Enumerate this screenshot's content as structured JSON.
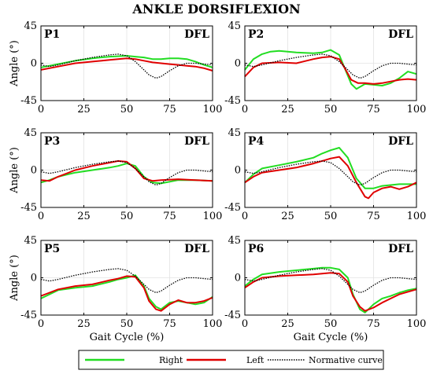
{
  "title": "ANKLE DORSIFLEXION",
  "legend": {
    "right": "Right",
    "left": "Left",
    "normative": "Normative curve"
  },
  "colors": {
    "right": "#22dd22",
    "left": "#e00000",
    "normative": "#000000"
  },
  "chart_data": [
    {
      "type": "line",
      "panel_label": "P1",
      "tag": "DFL",
      "xlabel": "",
      "ylabel": "Angle (°)",
      "xlim": [
        0,
        100
      ],
      "ylim": [
        -45,
        45
      ],
      "xticks": [
        "0",
        "25",
        "50",
        "75",
        "100"
      ],
      "yticks": [
        "45",
        "0",
        "-45"
      ],
      "series": [
        {
          "name": "Right",
          "x": [
            0,
            10,
            20,
            30,
            40,
            50,
            55,
            60,
            65,
            70,
            75,
            80,
            85,
            90,
            95,
            100
          ],
          "y": [
            -5,
            -1,
            3,
            6,
            8,
            9,
            8,
            7,
            5,
            5,
            6,
            6,
            5,
            2,
            -2,
            -5
          ]
        },
        {
          "name": "Left",
          "x": [
            0,
            10,
            20,
            30,
            40,
            50,
            55,
            60,
            65,
            70,
            75,
            80,
            85,
            90,
            95,
            100
          ],
          "y": [
            -8,
            -4,
            0,
            2,
            4,
            6,
            5,
            3,
            1,
            0,
            -1,
            -2,
            -3,
            -4,
            -6,
            -9
          ]
        },
        {
          "name": "Normative curve",
          "x": [
            0,
            5,
            10,
            20,
            30,
            40,
            45,
            50,
            55,
            60,
            63,
            67,
            70,
            75,
            80,
            85,
            90,
            95,
            100
          ],
          "y": [
            -2,
            -4,
            -2,
            3,
            7,
            10,
            11,
            9,
            2,
            -8,
            -14,
            -18,
            -16,
            -9,
            -3,
            0,
            0,
            -1,
            -2
          ]
        }
      ]
    },
    {
      "type": "line",
      "panel_label": "P2",
      "tag": "DFL",
      "xlabel": "",
      "ylabel": "",
      "xlim": [
        0,
        100
      ],
      "ylim": [
        -45,
        45
      ],
      "xticks": [
        "0",
        "25",
        "50",
        "75",
        "100"
      ],
      "yticks": [
        "45",
        "0",
        "-45"
      ],
      "series": [
        {
          "name": "Right",
          "x": [
            0,
            5,
            10,
            15,
            20,
            30,
            40,
            45,
            50,
            55,
            58,
            62,
            65,
            70,
            75,
            80,
            85,
            90,
            95,
            100
          ],
          "y": [
            -8,
            5,
            11,
            14,
            15,
            13,
            12,
            13,
            16,
            10,
            -5,
            -25,
            -31,
            -25,
            -26,
            -27,
            -24,
            -18,
            -10,
            -13
          ]
        },
        {
          "name": "Left",
          "x": [
            0,
            5,
            10,
            20,
            30,
            40,
            45,
            50,
            55,
            58,
            62,
            66,
            70,
            75,
            80,
            85,
            90,
            95,
            100
          ],
          "y": [
            -16,
            -5,
            0,
            1,
            0,
            5,
            7,
            8,
            5,
            -5,
            -20,
            -24,
            -24,
            -25,
            -24,
            -22,
            -20,
            -19,
            -20
          ]
        },
        {
          "name": "Normative curve",
          "x": [
            0,
            5,
            10,
            20,
            30,
            40,
            45,
            50,
            55,
            60,
            63,
            67,
            70,
            75,
            80,
            85,
            90,
            95,
            100
          ],
          "y": [
            -2,
            -4,
            -2,
            3,
            7,
            10,
            11,
            9,
            2,
            -8,
            -14,
            -18,
            -16,
            -9,
            -3,
            0,
            0,
            -1,
            -2
          ]
        }
      ]
    },
    {
      "type": "line",
      "panel_label": "P3",
      "tag": "DFL",
      "xlabel": "",
      "ylabel": "Angle (°)",
      "xlim": [
        0,
        100
      ],
      "ylim": [
        -45,
        45
      ],
      "xticks": [
        "0",
        "25",
        "50",
        "75",
        "100"
      ],
      "yticks": [
        "45",
        "0",
        "-45"
      ],
      "series": [
        {
          "name": "Right",
          "x": [
            0,
            5,
            10,
            20,
            30,
            40,
            45,
            50,
            55,
            60,
            65,
            70,
            80,
            90,
            100
          ],
          "y": [
            -15,
            -12,
            -8,
            -3,
            0,
            3,
            5,
            8,
            5,
            -8,
            -15,
            -16,
            -12,
            -12,
            -13
          ]
        },
        {
          "name": "Left",
          "x": [
            0,
            5,
            10,
            20,
            30,
            40,
            45,
            50,
            55,
            60,
            65,
            70,
            80,
            90,
            100
          ],
          "y": [
            -12,
            -13,
            -8,
            0,
            5,
            9,
            11,
            10,
            2,
            -10,
            -13,
            -12,
            -11,
            -12,
            -13
          ]
        },
        {
          "name": "Normative curve",
          "x": [
            0,
            5,
            10,
            20,
            30,
            40,
            45,
            50,
            55,
            60,
            63,
            67,
            70,
            75,
            80,
            85,
            90,
            95,
            100
          ],
          "y": [
            -2,
            -4,
            -2,
            3,
            7,
            10,
            11,
            9,
            2,
            -8,
            -14,
            -18,
            -16,
            -9,
            -3,
            0,
            0,
            -1,
            -2
          ]
        }
      ]
    },
    {
      "type": "line",
      "panel_label": "P4",
      "tag": "DFL",
      "xlabel": "",
      "ylabel": "",
      "xlim": [
        0,
        100
      ],
      "ylim": [
        -45,
        45
      ],
      "xticks": [
        "0",
        "25",
        "50",
        "75",
        "100"
      ],
      "yticks": [
        "45",
        "0",
        "-45"
      ],
      "series": [
        {
          "name": "Right",
          "x": [
            0,
            5,
            10,
            20,
            30,
            40,
            45,
            50,
            55,
            60,
            65,
            70,
            75,
            80,
            85,
            90,
            95,
            100
          ],
          "y": [
            -15,
            -5,
            2,
            6,
            10,
            15,
            20,
            24,
            27,
            15,
            -10,
            -22,
            -22,
            -19,
            -18,
            -17,
            -17,
            -17
          ]
        },
        {
          "name": "Left",
          "x": [
            0,
            5,
            10,
            20,
            30,
            40,
            45,
            50,
            55,
            60,
            65,
            70,
            72,
            75,
            80,
            85,
            90,
            95,
            100
          ],
          "y": [
            -15,
            -8,
            -3,
            0,
            3,
            8,
            11,
            14,
            16,
            5,
            -15,
            -32,
            -34,
            -27,
            -22,
            -20,
            -23,
            -20,
            -15
          ]
        },
        {
          "name": "Normative curve",
          "x": [
            0,
            5,
            10,
            20,
            30,
            40,
            45,
            50,
            55,
            60,
            63,
            67,
            70,
            75,
            80,
            85,
            90,
            95,
            100
          ],
          "y": [
            -2,
            -4,
            -2,
            3,
            7,
            10,
            11,
            9,
            2,
            -8,
            -14,
            -18,
            -16,
            -9,
            -3,
            0,
            0,
            -1,
            -2
          ]
        }
      ]
    },
    {
      "type": "line",
      "panel_label": "P5",
      "tag": "DFL",
      "xlabel": "Gait Cycle (%)",
      "ylabel": "Angle (°)",
      "xlim": [
        0,
        100
      ],
      "ylim": [
        -45,
        45
      ],
      "xticks": [
        "0",
        "25",
        "50",
        "75",
        "100"
      ],
      "yticks": [
        "45",
        "0",
        "-45"
      ],
      "series": [
        {
          "name": "Right",
          "x": [
            0,
            5,
            10,
            20,
            30,
            40,
            45,
            50,
            55,
            60,
            63,
            67,
            70,
            75,
            80,
            85,
            90,
            95,
            100
          ],
          "y": [
            -25,
            -20,
            -15,
            -12,
            -10,
            -5,
            -2,
            0,
            3,
            -10,
            -25,
            -35,
            -38,
            -30,
            -28,
            -30,
            -32,
            -30,
            -23
          ]
        },
        {
          "name": "Left",
          "x": [
            0,
            5,
            10,
            20,
            30,
            40,
            45,
            50,
            55,
            60,
            63,
            67,
            70,
            75,
            80,
            85,
            90,
            95,
            100
          ],
          "y": [
            -22,
            -18,
            -14,
            -10,
            -8,
            -3,
            -1,
            2,
            1,
            -12,
            -28,
            -38,
            -40,
            -32,
            -27,
            -30,
            -30,
            -28,
            -24
          ]
        },
        {
          "name": "Normative curve",
          "x": [
            0,
            5,
            10,
            20,
            30,
            40,
            45,
            50,
            55,
            60,
            63,
            67,
            70,
            75,
            80,
            85,
            90,
            95,
            100
          ],
          "y": [
            -2,
            -4,
            -2,
            3,
            7,
            10,
            11,
            9,
            2,
            -8,
            -14,
            -18,
            -16,
            -9,
            -3,
            0,
            0,
            -1,
            -2
          ]
        }
      ]
    },
    {
      "type": "line",
      "panel_label": "P6",
      "tag": "DFL",
      "xlabel": "Gait Cycle (%)",
      "ylabel": "",
      "xlim": [
        0,
        100
      ],
      "ylim": [
        -45,
        45
      ],
      "xticks": [
        "0",
        "25",
        "50",
        "75",
        "100"
      ],
      "yticks": [
        "45",
        "0",
        "-45"
      ],
      "series": [
        {
          "name": "Right",
          "x": [
            0,
            5,
            10,
            20,
            30,
            40,
            45,
            50,
            55,
            60,
            63,
            67,
            70,
            75,
            80,
            85,
            90,
            95,
            100
          ],
          "y": [
            -10,
            -2,
            4,
            7,
            9,
            11,
            12,
            12,
            10,
            0,
            -20,
            -38,
            -42,
            -32,
            -25,
            -22,
            -18,
            -15,
            -13
          ]
        },
        {
          "name": "Left",
          "x": [
            0,
            5,
            10,
            20,
            30,
            40,
            45,
            50,
            55,
            60,
            63,
            67,
            70,
            75,
            80,
            85,
            90,
            95,
            100
          ],
          "y": [
            -12,
            -5,
            0,
            2,
            3,
            4,
            5,
            6,
            5,
            -5,
            -22,
            -35,
            -40,
            -36,
            -30,
            -25,
            -20,
            -17,
            -14
          ]
        },
        {
          "name": "Normative curve",
          "x": [
            0,
            5,
            10,
            20,
            30,
            40,
            45,
            50,
            55,
            60,
            63,
            67,
            70,
            75,
            80,
            85,
            90,
            95,
            100
          ],
          "y": [
            -2,
            -4,
            -2,
            3,
            7,
            10,
            11,
            9,
            2,
            -8,
            -14,
            -18,
            -16,
            -9,
            -3,
            0,
            0,
            -1,
            -2
          ]
        }
      ]
    }
  ]
}
